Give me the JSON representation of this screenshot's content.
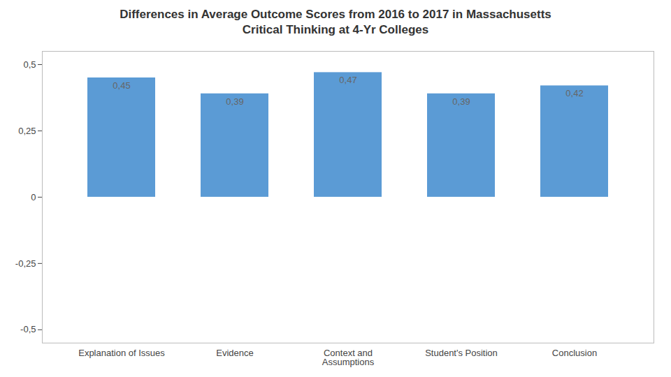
{
  "chart_data": {
    "type": "bar",
    "title": "Differences in Average Outcome Scores from 2016 to 2017 in Massachusetts\nCritical Thinking at 4-Yr Colleges",
    "categories": [
      "Explanation of Issues",
      "Evidence",
      "Context and\nAssumptions",
      "Student's Position",
      "Conclusion"
    ],
    "values": [
      0.45,
      0.39,
      0.47,
      0.39,
      0.42
    ],
    "value_labels": [
      "0,45",
      "0,39",
      "0,47",
      "0,39",
      "0,42"
    ],
    "color": "#5b9bd5",
    "ylim": [
      -0.55,
      0.55
    ],
    "yticks": [
      {
        "value": -0.5,
        "label": "-0,5"
      },
      {
        "value": -0.25,
        "label": "-0,25"
      },
      0,
      {
        "value": 0.25,
        "label": "0,25"
      },
      {
        "value": 0.5,
        "label": "0,5"
      }
    ],
    "grid": false,
    "data_labels": true
  }
}
